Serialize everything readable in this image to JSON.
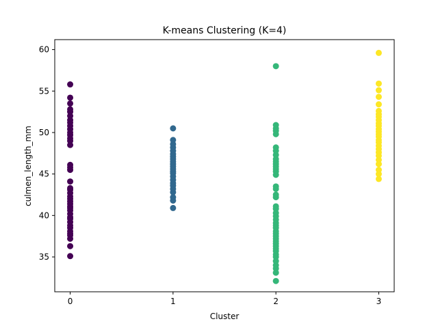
{
  "chart_data": {
    "type": "scatter",
    "title": "K-means Clustering (K=4)",
    "xlabel": "Cluster",
    "ylabel": "culmen_length_mm",
    "xlim": [
      -0.15,
      3.15
    ],
    "ylim": [
      30.8,
      61.2
    ],
    "xticks": [
      0,
      1,
      2,
      3
    ],
    "yticks": [
      35,
      40,
      45,
      50,
      55,
      60
    ],
    "grid": false,
    "legend": "none",
    "series": [
      {
        "color": "#440154",
        "x": 0,
        "values": [
          35.1,
          36.3,
          37.2,
          37.6,
          37.8,
          38.1,
          38.5,
          38.8,
          39.2,
          39.6,
          39.8,
          40.2,
          40.6,
          40.9,
          41.1,
          41.4,
          41.7,
          42.0,
          42.3,
          42.7,
          43.1,
          43.3,
          44.1,
          45.5,
          45.8,
          46.1,
          48.5,
          49.0,
          49.3,
          49.7,
          50.0,
          50.4,
          50.8,
          51.2,
          51.5,
          52.0,
          52.5,
          52.8,
          53.5,
          54.2,
          55.8
        ]
      },
      {
        "color": "#31688e",
        "x": 1,
        "values": [
          40.9,
          41.8,
          42.2,
          42.8,
          43.2,
          43.6,
          43.9,
          44.3,
          44.7,
          45.1,
          45.3,
          45.6,
          45.9,
          46.2,
          46.5,
          46.8,
          47.1,
          47.4,
          47.8,
          48.2,
          48.6,
          49.1,
          50.5
        ]
      },
      {
        "color": "#35b779",
        "x": 2,
        "values": [
          32.1,
          33.1,
          33.6,
          34.0,
          34.5,
          35.0,
          35.3,
          35.7,
          36.0,
          36.3,
          36.6,
          36.9,
          37.2,
          37.5,
          37.8,
          38.1,
          38.5,
          38.8,
          39.1,
          39.5,
          39.9,
          40.3,
          40.8,
          41.1,
          42.2,
          42.5,
          43.2,
          43.5,
          44.9,
          45.3,
          45.6,
          45.9,
          46.2,
          46.5,
          46.8,
          47.3,
          47.8,
          48.2,
          49.8,
          50.2,
          50.5,
          50.9,
          58.0
        ]
      },
      {
        "color": "#fde725",
        "x": 3,
        "values": [
          44.4,
          45.0,
          45.5,
          46.2,
          46.7,
          47.2,
          47.6,
          48.0,
          48.4,
          48.8,
          49.1,
          49.5,
          49.8,
          50.1,
          50.4,
          50.8,
          51.1,
          51.5,
          51.9,
          52.2,
          52.6,
          53.4,
          54.3,
          55.1,
          55.9,
          59.6
        ]
      }
    ]
  }
}
